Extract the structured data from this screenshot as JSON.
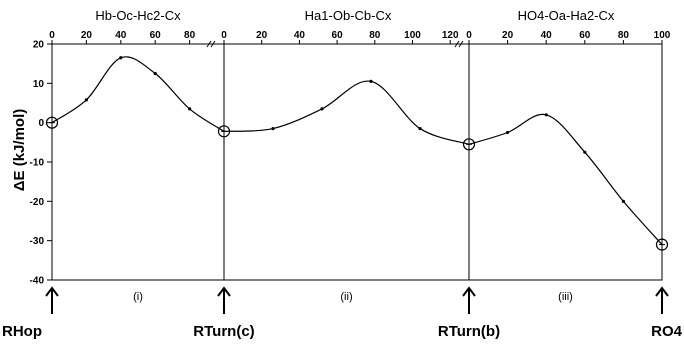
{
  "chart_data": {
    "type": "line",
    "ylabel": "ΔE (kJ/mol)",
    "ylim": [
      -40,
      20
    ],
    "yticks": [
      20,
      10,
      0,
      -10,
      -20,
      -30,
      -40
    ],
    "grid": false,
    "segments": [
      {
        "title": "Hb-Oc-Hc2-Cx",
        "roman": "(i)",
        "xlim": [
          0,
          92
        ],
        "xticks": [
          0,
          20,
          40,
          60,
          80
        ],
        "x": [
          0,
          20,
          40,
          60,
          80,
          100
        ],
        "y": [
          0,
          5.8,
          16.5,
          12.5,
          3.5,
          -2.2
        ]
      },
      {
        "title": "Ha1-Ob-Cb-Cx",
        "roman": "(ii)",
        "xlim": [
          0,
          130
        ],
        "xticks": [
          0,
          20,
          40,
          60,
          80,
          100,
          120
        ],
        "x": [
          0,
          26,
          52,
          78,
          104,
          130
        ],
        "y": [
          -2.2,
          -1.5,
          3.5,
          10.5,
          -1.5,
          -5.5
        ]
      },
      {
        "title": "HO4-Oa-Ha2-Cx",
        "roman": "(iii)",
        "xlim": [
          0,
          105
        ],
        "xticks": [
          0,
          20,
          40,
          60,
          80,
          100
        ],
        "x": [
          0,
          20,
          40,
          60,
          80,
          100
        ],
        "y": [
          -5.5,
          -2.5,
          2,
          -7.5,
          -20,
          -31
        ]
      }
    ],
    "states": [
      "RHop",
      "RTurn(c)",
      "RTurn(b)",
      "RO4"
    ]
  }
}
